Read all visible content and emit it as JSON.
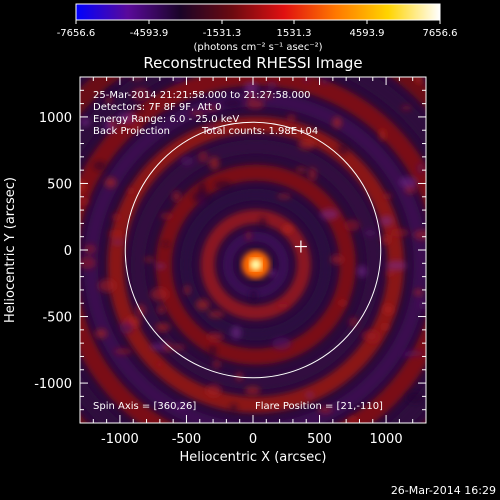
{
  "colorbar": {
    "ticks": [
      "-7656.6",
      "-4593.9",
      "-1531.3",
      "1531.3",
      "4593.9",
      "7656.6"
    ],
    "unit_label": "(photons cm⁻² s⁻¹ asec⁻²)"
  },
  "annotations": {
    "time_range": "25-Mar-2014 21:21:58.000 to 21:27:58.000",
    "detectors": "Detectors: 7F 8F 9F, Att 0",
    "energy_range": "Energy Range: 6.0 - 25.0 keV",
    "method": "Back Projection",
    "total_counts": "Total counts: 1.98E+04",
    "spin_axis": "Spin Axis = [360,26]",
    "flare_position": "Flare Position = [21,-110]"
  },
  "footer": {
    "timestamp": "26-Mar-2014 16:29"
  },
  "chart_data": {
    "type": "heatmap",
    "title": "Reconstructed RHESSI Image",
    "xlabel": "Heliocentric X (arcsec)",
    "ylabel": "Heliocentric Y (arcsec)",
    "xlim": [
      -1300,
      1300
    ],
    "ylim": [
      -1300,
      1300
    ],
    "xticks": [
      "-1000",
      "-500",
      "0",
      "500",
      "1000"
    ],
    "yticks": [
      "-1000",
      "-500",
      "0",
      "500",
      "1000"
    ],
    "color_range": [
      -7656.6,
      7656.6
    ],
    "colormap": [
      "#0000ff",
      "#5a0a9a",
      "#1a0428",
      "#6b0a10",
      "#e01010",
      "#ff7800",
      "#ffd400",
      "#ffffff"
    ],
    "source_peak": [
      21,
      -110
    ],
    "marker_position": [
      360,
      26
    ],
    "solar_limb_radius": 960
  }
}
